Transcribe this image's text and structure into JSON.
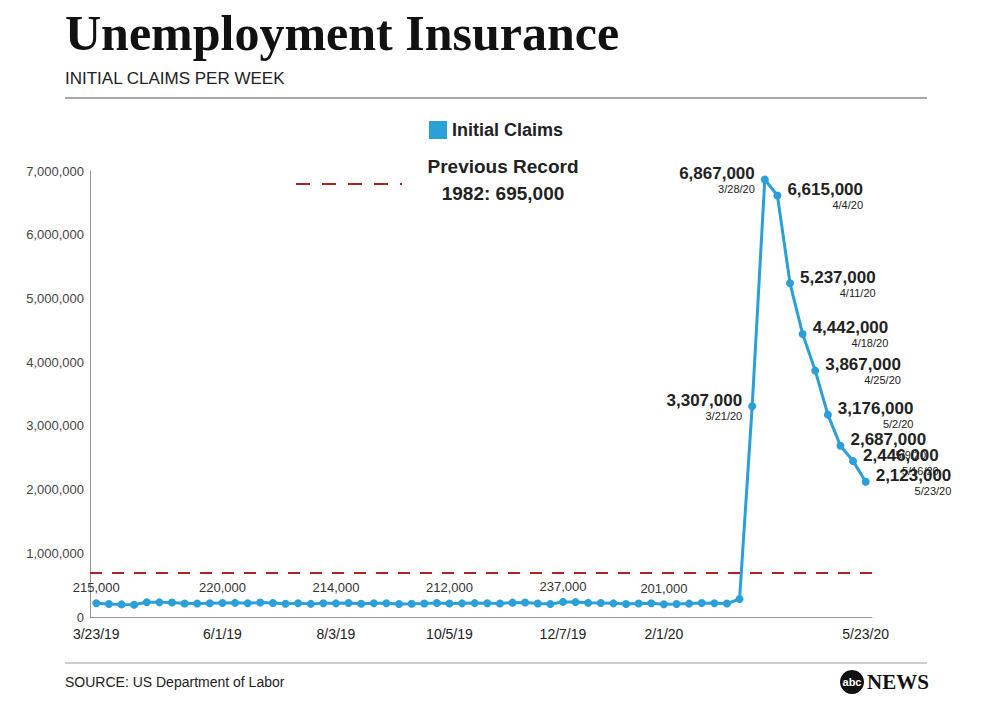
{
  "chart_data": {
    "type": "line",
    "title": "Unemployment Insurance",
    "subtitle": "INITIAL CLAIMS PER WEEK",
    "source": "SOURCE: US Department of Labor",
    "branding": {
      "logo": "abc",
      "name": "NEWS"
    },
    "categories": [
      "3/23/19",
      null,
      null,
      null,
      null,
      null,
      null,
      null,
      null,
      null,
      "6/1/19",
      null,
      null,
      null,
      null,
      null,
      null,
      null,
      null,
      "8/3/19",
      null,
      null,
      null,
      null,
      null,
      null,
      null,
      null,
      "10/5/19",
      null,
      null,
      null,
      null,
      null,
      null,
      null,
      null,
      "12/7/19",
      null,
      null,
      null,
      null,
      null,
      null,
      null,
      "2/1/20",
      null,
      null,
      null,
      null,
      null,
      null,
      null,
      null,
      null,
      null,
      null,
      null,
      null,
      null,
      null,
      "5/23/20"
    ],
    "series": [
      {
        "name": "Initial Claims",
        "color": "#2a9fd8",
        "marker": "circle",
        "values": [
          215000,
          205000,
          198000,
          193000,
          232000,
          230000,
          228000,
          212000,
          211000,
          215000,
          220000,
          222000,
          216000,
          227000,
          221000,
          209000,
          216000,
          206000,
          215000,
          214000,
          220000,
          209000,
          215000,
          217000,
          204000,
          208000,
          213000,
          219000,
          212000,
          214000,
          218000,
          217000,
          211000,
          225000,
          227000,
          213000,
          203000,
          237000,
          234000,
          222000,
          220000,
          214000,
          204000,
          211000,
          216000,
          201000,
          205000,
          210000,
          219000,
          217000,
          211000,
          282000,
          3307000,
          6867000,
          6615000,
          5237000,
          4442000,
          3867000,
          3176000,
          2687000,
          2446000,
          2123000
        ],
        "value_labels": [
          "215,000",
          null,
          null,
          null,
          null,
          null,
          null,
          null,
          null,
          null,
          "220,000",
          null,
          null,
          null,
          null,
          null,
          null,
          null,
          null,
          "214,000",
          null,
          null,
          null,
          null,
          null,
          null,
          null,
          null,
          "212,000",
          null,
          null,
          null,
          null,
          null,
          null,
          null,
          null,
          "237,000",
          null,
          null,
          null,
          null,
          null,
          null,
          null,
          "201,000",
          null,
          null,
          null,
          null,
          null,
          null,
          "3,307,000",
          "6,867,000",
          "6,615,000",
          "5,237,000",
          "4,442,000",
          "3,867,000",
          "3,176,000",
          "2,687,000",
          "2,446,000",
          "2,123,000"
        ],
        "date_labels": [
          null,
          null,
          null,
          null,
          null,
          null,
          null,
          null,
          null,
          null,
          null,
          null,
          null,
          null,
          null,
          null,
          null,
          null,
          null,
          null,
          null,
          null,
          null,
          null,
          null,
          null,
          null,
          null,
          null,
          null,
          null,
          null,
          null,
          null,
          null,
          null,
          null,
          null,
          null,
          null,
          null,
          null,
          null,
          null,
          null,
          null,
          null,
          null,
          null,
          null,
          null,
          null,
          "3/21/20",
          "3/28/20",
          "4/4/20",
          "4/11/20",
          "4/18/20",
          "4/25/20",
          "5/2/20",
          "5/9/20",
          "5/16/20",
          "5/23/20"
        ]
      }
    ],
    "reference_line": {
      "value": 695000,
      "label": "Previous Record",
      "sublabel": "1982: 695,000",
      "color": "#b22222",
      "line_style": "dashed"
    },
    "ylim": [
      0,
      7000000
    ],
    "yticks": [
      0,
      {
        "value": 1000000,
        "label": "1,000,000"
      },
      {
        "value": 2000000,
        "label": "2,000,000"
      },
      {
        "value": 3000000,
        "label": "3,000,000"
      },
      {
        "value": 4000000,
        "label": "4,000,000"
      },
      {
        "value": 5000000,
        "label": "5,000,000"
      },
      {
        "value": 6000000,
        "label": "6,000,000"
      },
      {
        "value": 7000000,
        "label": "7,000,000"
      }
    ],
    "grid": false,
    "legend": "top",
    "data_labels": true
  }
}
